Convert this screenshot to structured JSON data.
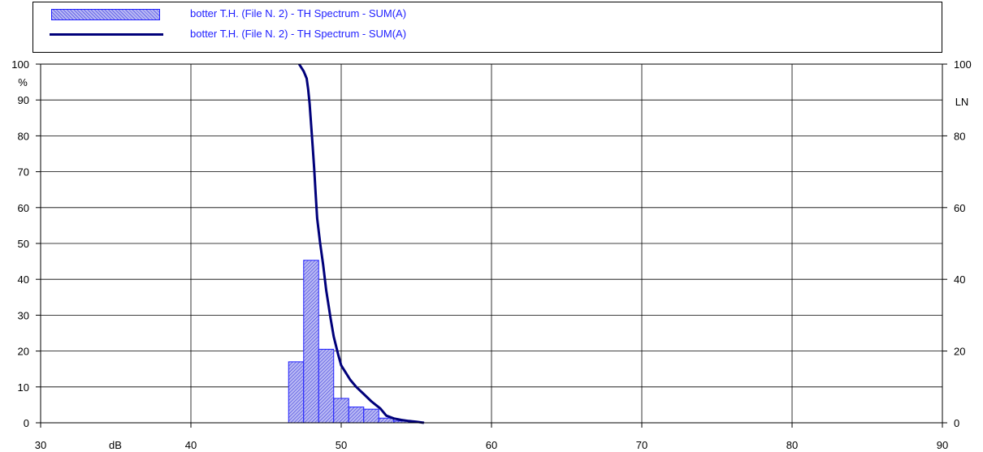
{
  "legend": {
    "items": [
      {
        "label": "botter T.H.  (File N. 2) - TH Spectrum - SUM(A)",
        "kind": "bar"
      },
      {
        "label": "botter T.H.  (File N. 2) - TH Spectrum - SUM(A)",
        "kind": "line"
      }
    ]
  },
  "colors": {
    "bar_fill": "#b8b8f4",
    "bar_edge": "#2020ff",
    "line": "#00007a",
    "grid": "#000000",
    "legend_text": "#2020ff"
  },
  "chart_data": {
    "type": "bar",
    "xlabel": "dB",
    "ylabel": "%",
    "y2label": "LN",
    "xlim": [
      30,
      90
    ],
    "ylim": [
      0,
      100
    ],
    "y2lim": [
      0,
      100
    ],
    "grid": true,
    "legend_placement": "top",
    "x_ticks": [
      "30",
      "40",
      "50",
      "60",
      "70",
      "80",
      "90"
    ],
    "y_ticks": [
      "0",
      "10",
      "20",
      "30",
      "40",
      "50",
      "60",
      "70",
      "80",
      "90",
      "100"
    ],
    "y2_ticks": [
      "0",
      "20",
      "40",
      "60",
      "80",
      "100"
    ],
    "bars": {
      "bin_width": 1,
      "bin_starts": [
        46.5,
        47.5,
        48.5,
        49.5,
        50.5,
        51.5,
        52.5,
        53.5,
        54.5
      ],
      "values": [
        17,
        45.3,
        20.5,
        6.8,
        4.4,
        3.8,
        1.3,
        0.5,
        0.2
      ]
    },
    "series": [
      {
        "type": "line",
        "x": [
          47.2,
          47.5,
          47.7,
          47.8,
          47.9,
          48.0,
          48.1,
          48.2,
          48.3,
          48.4,
          48.6,
          48.8,
          49.0,
          49.3,
          49.5,
          49.8,
          50.0,
          50.3,
          50.6,
          51.0,
          51.5,
          52.0,
          52.3,
          52.6,
          53.0,
          53.5,
          54.0,
          54.5,
          55.0,
          55.5
        ],
        "y": [
          100,
          98,
          96,
          93,
          89,
          83,
          77,
          71,
          64,
          57,
          50,
          44,
          37,
          29,
          24,
          19,
          16,
          14,
          12,
          10,
          8,
          6,
          5,
          4,
          2,
          1.2,
          0.8,
          0.5,
          0.3,
          0
        ]
      }
    ]
  }
}
